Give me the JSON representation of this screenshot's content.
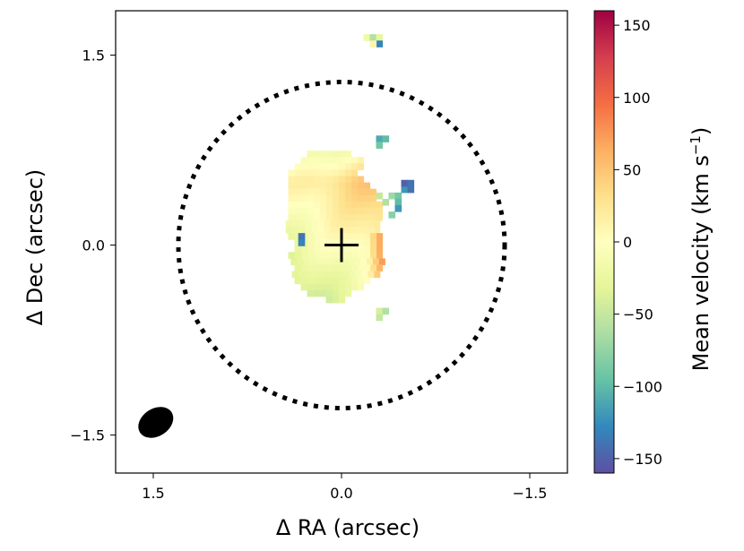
{
  "chart_data": {
    "type": "heatmap",
    "title": "",
    "xlabel": "Δ RA (arcsec)",
    "ylabel": "Δ Dec (arcsec)",
    "xlim": [
      1.8,
      -1.8
    ],
    "ylim": [
      -1.8,
      1.85
    ],
    "x_ticks": [
      {
        "value": 1.5,
        "label": "1.5"
      },
      {
        "value": 0.0,
        "label": "0.0"
      },
      {
        "value": -1.5,
        "label": "−1.5"
      }
    ],
    "y_ticks": [
      {
        "value": 1.5,
        "label": "1.5"
      },
      {
        "value": 0.0,
        "label": "0.0"
      },
      {
        "value": -1.5,
        "label": "−1.5"
      }
    ],
    "colorbar": {
      "label": "Mean velocity (km s",
      "label_superscript": "−1",
      "label_close": ")",
      "range": [
        -160,
        160
      ],
      "colormap": "Spectral_r",
      "ticks": [
        {
          "value": 150,
          "label": "150"
        },
        {
          "value": 100,
          "label": "100"
        },
        {
          "value": 50,
          "label": "50"
        },
        {
          "value": 0,
          "label": "0"
        },
        {
          "value": -50,
          "label": "−50"
        },
        {
          "value": -100,
          "label": "−100"
        },
        {
          "value": -150,
          "label": "−150"
        }
      ]
    },
    "center_marker": {
      "x": 0.0,
      "y": 0.0,
      "shape": "plus",
      "color": "#000000"
    },
    "aperture_circle": {
      "x": 0.0,
      "y": 0.0,
      "radius": 1.3,
      "style": "dotted",
      "color": "#000000"
    },
    "beam": {
      "x": 1.48,
      "y": -1.4,
      "major": 0.3,
      "minor": 0.22,
      "angle_deg": 60,
      "color": "#000000"
    },
    "velocity_map": {
      "pixel_size": 0.05,
      "main_region_rows": [
        {
          "y": 0.72,
          "x_from": -0.05,
          "x_to": 0.25
        },
        {
          "y": 0.67,
          "x_from": -0.15,
          "x_to": 0.33
        },
        {
          "y": 0.62,
          "x_from": -0.15,
          "x_to": 0.35
        },
        {
          "y": 0.57,
          "x_from": -0.1,
          "x_to": 0.4
        },
        {
          "y": 0.52,
          "x_from": -0.15,
          "x_to": 0.4
        },
        {
          "y": 0.47,
          "x_from": -0.2,
          "x_to": 0.42
        },
        {
          "y": 0.42,
          "x_from": -0.25,
          "x_to": 0.42
        },
        {
          "y": 0.37,
          "x_from": -0.25,
          "x_to": 0.44
        },
        {
          "y": 0.32,
          "x_from": -0.3,
          "x_to": 0.44
        },
        {
          "y": 0.27,
          "x_from": -0.3,
          "x_to": 0.42
        },
        {
          "y": 0.22,
          "x_from": -0.3,
          "x_to": 0.42
        },
        {
          "y": 0.17,
          "x_from": -0.28,
          "x_to": 0.42
        },
        {
          "y": 0.12,
          "x_from": -0.28,
          "x_to": 0.42
        },
        {
          "y": 0.07,
          "x_from": -0.3,
          "x_to": 0.4
        },
        {
          "y": 0.02,
          "x_from": -0.3,
          "x_to": 0.38
        },
        {
          "y": -0.03,
          "x_from": -0.3,
          "x_to": 0.38
        },
        {
          "y": -0.08,
          "x_from": -0.3,
          "x_to": 0.4
        },
        {
          "y": -0.13,
          "x_from": -0.32,
          "x_to": 0.38
        },
        {
          "y": -0.18,
          "x_from": -0.3,
          "x_to": 0.38
        },
        {
          "y": -0.23,
          "x_from": -0.28,
          "x_to": 0.38
        },
        {
          "y": -0.28,
          "x_from": -0.2,
          "x_to": 0.38
        },
        {
          "y": -0.33,
          "x_from": -0.15,
          "x_to": 0.3
        },
        {
          "y": -0.38,
          "x_from": -0.05,
          "x_to": 0.25
        },
        {
          "y": -0.43,
          "x_from": 0.0,
          "x_to": 0.1
        }
      ],
      "clumps": [
        {
          "x": -0.2,
          "y": 1.64,
          "v": -20
        },
        {
          "x": -0.25,
          "y": 1.64,
          "v": -60
        },
        {
          "x": -0.3,
          "y": 1.64,
          "v": -30
        },
        {
          "x": -0.3,
          "y": 1.59,
          "v": -130
        },
        {
          "x": -0.25,
          "y": 1.59,
          "v": 10
        },
        {
          "x": -0.3,
          "y": 0.84,
          "v": -110
        },
        {
          "x": -0.35,
          "y": 0.84,
          "v": -100
        },
        {
          "x": -0.3,
          "y": 0.79,
          "v": -90
        },
        {
          "x": -0.4,
          "y": 0.39,
          "v": -70
        },
        {
          "x": -0.45,
          "y": 0.39,
          "v": -90
        },
        {
          "x": -0.5,
          "y": 0.44,
          "v": -120
        },
        {
          "x": -0.55,
          "y": 0.44,
          "v": -140
        },
        {
          "x": -0.5,
          "y": 0.49,
          "v": -150
        },
        {
          "x": -0.55,
          "y": 0.49,
          "v": -140
        },
        {
          "x": -0.45,
          "y": 0.34,
          "v": -100
        },
        {
          "x": -0.45,
          "y": 0.29,
          "v": -120
        },
        {
          "x": -0.4,
          "y": 0.24,
          "v": -80
        },
        {
          "x": -0.35,
          "y": 0.34,
          "v": -60
        },
        {
          "x": -0.3,
          "y": 0.39,
          "v": -50
        },
        {
          "x": -0.3,
          "y": -0.52,
          "v": -40
        },
        {
          "x": -0.35,
          "y": -0.52,
          "v": -60
        },
        {
          "x": -0.3,
          "y": -0.57,
          "v": -50
        },
        {
          "x": 0.32,
          "y": 0.07,
          "v": -140
        },
        {
          "x": 0.32,
          "y": 0.02,
          "v": -130
        }
      ]
    },
    "colors": {
      "axes": "#000000",
      "background": "#ffffff"
    }
  }
}
